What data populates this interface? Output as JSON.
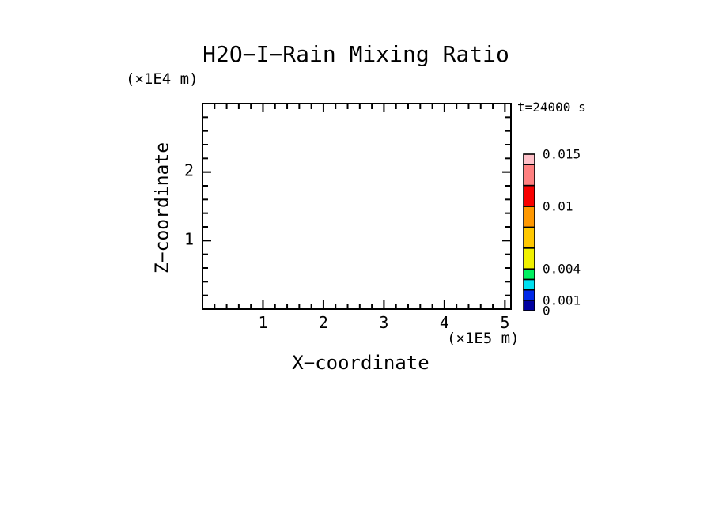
{
  "title": "H2O−I−Rain Mixing Ratio",
  "time_label": "t=24000 s",
  "axes": {
    "x": {
      "label": "X−coordinate",
      "unit_label": "(×1E5 m)",
      "min": 0,
      "max": 5.1,
      "major_ticks": [
        1,
        2,
        3,
        4,
        5
      ],
      "minor_tick_step": 0.2
    },
    "y": {
      "label": "Z−coordinate",
      "unit_label": "(×1E4 m)",
      "min": 0,
      "max": 3,
      "major_ticks": [
        1,
        2
      ],
      "minor_tick_step": 0.2
    }
  },
  "colorbar": {
    "levels": [
      0,
      0.001,
      0.002,
      0.003,
      0.004,
      0.006,
      0.008,
      0.01,
      0.012,
      0.014,
      0.015
    ],
    "segment_colors": [
      "#0000a0",
      "#0028e8",
      "#00e0f0",
      "#00f060",
      "#f0f000",
      "#ffc800",
      "#ff9800",
      "#f80000",
      "#ff8080",
      "#ffc0c8"
    ],
    "tick_labels": [
      {
        "value": 0.015,
        "label": "0.015"
      },
      {
        "value": 0.01,
        "label": "0.01"
      },
      {
        "value": 0.004,
        "label": "0.004"
      },
      {
        "value": 0.001,
        "label": "0.001"
      },
      {
        "value": 0,
        "label": "0"
      }
    ]
  },
  "chart_data": {
    "type": "heatmap",
    "title": "H2O-I-Rain Mixing Ratio",
    "xlabel": "X-coordinate (×1E5 m)",
    "ylabel": "Z-coordinate (×1E4 m)",
    "xlim": [
      0,
      5.1
    ],
    "ylim": [
      0,
      3
    ],
    "annotation": "t=24000 s",
    "contour_levels": [
      0,
      0.001,
      0.002,
      0.003,
      0.004,
      0.006,
      0.008,
      0.01,
      0.012,
      0.014,
      0.015
    ],
    "palette": [
      "#0000a0",
      "#0028e8",
      "#00e0f0",
      "#00f060",
      "#f0f000",
      "#ffc800",
      "#ff9800",
      "#f80000",
      "#ff8080",
      "#ffc0c8"
    ],
    "values": [],
    "note": "plot area is blank: rain mixing ratio field is below the lowest contour level everywhere at this time"
  }
}
